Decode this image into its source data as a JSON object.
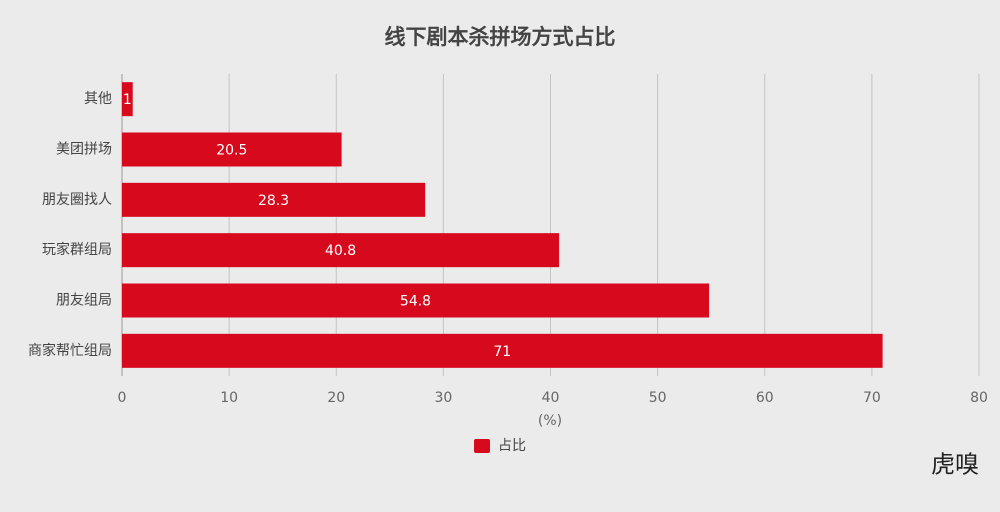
{
  "chart_data": {
    "type": "barh",
    "title": "线下剧本杀拼场方式占比",
    "categories": [
      "其他",
      "美团拼场",
      "朋友圈找人",
      "玩家群组局",
      "朋友组局",
      "商家帮忙组局"
    ],
    "series": [
      {
        "name": "占比",
        "color": "#d7091c",
        "values": [
          1,
          20.5,
          28.3,
          40.8,
          54.8,
          71
        ]
      }
    ],
    "xlabel": "(%)",
    "xlim": [
      0,
      80
    ],
    "xticks": [
      0,
      10,
      20,
      30,
      40,
      50,
      60,
      70,
      80
    ],
    "grid": true,
    "legend": "bottom",
    "watermark": "虎嗅"
  }
}
